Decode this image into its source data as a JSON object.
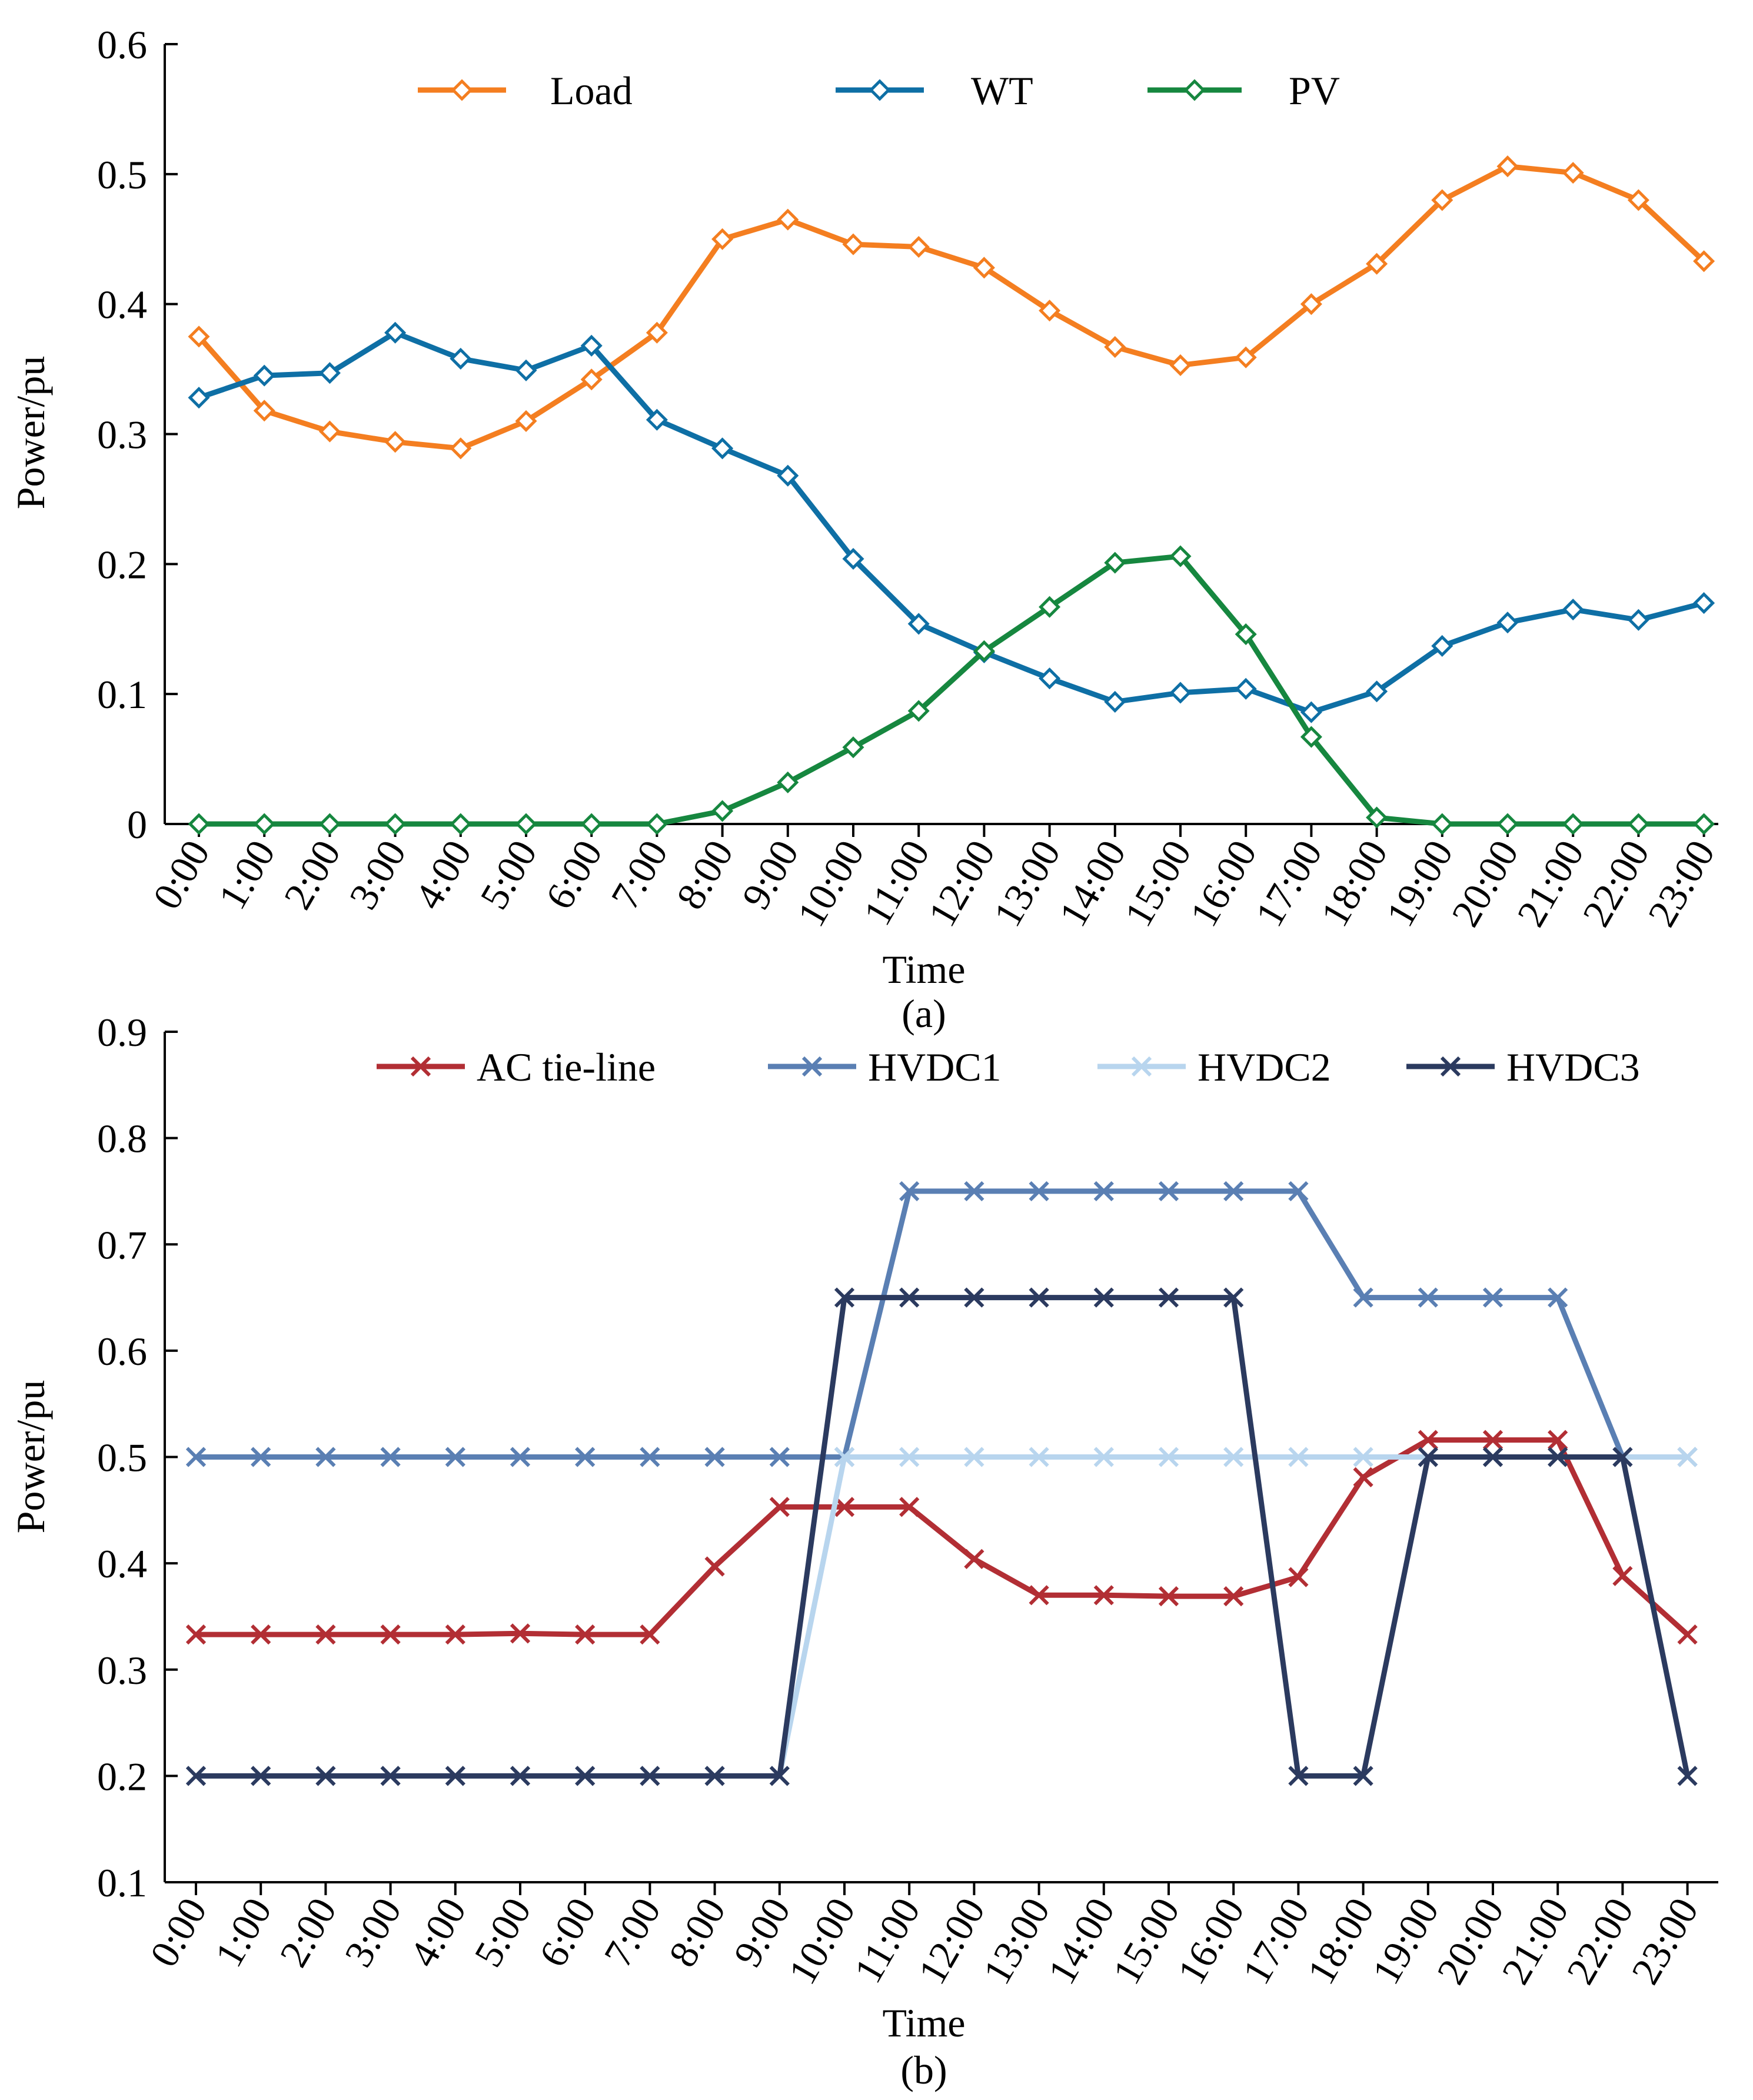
{
  "chart_data": [
    {
      "type": "line",
      "caption": "(a)",
      "title": "",
      "xlabel": "Time",
      "ylabel": "Power/pu",
      "ylim": [
        0,
        0.6
      ],
      "yticks": [
        "0",
        "0.1",
        "0.2",
        "0.3",
        "0.4",
        "0.5",
        "0.6"
      ],
      "categories": [
        "0:00",
        "1:00",
        "2:00",
        "3:00",
        "4:00",
        "5:00",
        "6:00",
        "7:00",
        "8:00",
        "9:00",
        "10:00",
        "11:00",
        "12:00",
        "13:00",
        "14:00",
        "15:00",
        "16:00",
        "17:00",
        "18:00",
        "19:00",
        "20:00",
        "21:00",
        "22:00",
        "23:00"
      ],
      "legend_position": "top",
      "series": [
        {
          "name": "Load",
          "color": "#F47E20",
          "marker": "diamond",
          "values": [
            0.375,
            0.318,
            0.302,
            0.294,
            0.289,
            0.31,
            0.342,
            0.378,
            0.45,
            0.465,
            0.446,
            0.444,
            0.428,
            0.395,
            0.367,
            0.353,
            0.359,
            0.4,
            0.431,
            0.48,
            0.506,
            0.501,
            0.48,
            0.433
          ]
        },
        {
          "name": "WT",
          "color": "#0E6FA5",
          "marker": "diamond",
          "values": [
            0.328,
            0.345,
            0.347,
            0.378,
            0.358,
            0.349,
            0.368,
            0.311,
            0.289,
            0.268,
            0.204,
            0.154,
            0.132,
            0.112,
            0.094,
            0.101,
            0.104,
            0.086,
            0.102,
            0.137,
            0.155,
            0.165,
            0.157,
            0.17
          ]
        },
        {
          "name": "PV",
          "color": "#16873F",
          "marker": "diamond",
          "values": [
            0,
            0,
            0,
            0,
            0,
            0,
            0,
            0,
            0.01,
            0.032,
            0.059,
            0.087,
            0.133,
            0.167,
            0.201,
            0.206,
            0.146,
            0.067,
            0.005,
            0,
            0,
            0,
            0,
            0
          ]
        }
      ]
    },
    {
      "type": "line",
      "caption": "(b)",
      "title": "",
      "xlabel": "Time",
      "ylabel": "Power/pu",
      "ylim": [
        0.1,
        0.9
      ],
      "yticks": [
        "0.1",
        "0.2",
        "0.3",
        "0.4",
        "0.5",
        "0.6",
        "0.7",
        "0.8",
        "0.9"
      ],
      "categories": [
        "0:00",
        "1:00",
        "2:00",
        "3:00",
        "4:00",
        "5:00",
        "6:00",
        "7:00",
        "8:00",
        "9:00",
        "10:00",
        "11:00",
        "12:00",
        "13:00",
        "14:00",
        "15:00",
        "16:00",
        "17:00",
        "18:00",
        "19:00",
        "20:00",
        "21:00",
        "22:00",
        "23:00"
      ],
      "legend_position": "top",
      "series": [
        {
          "name": "AC tie-line",
          "color": "#B22E34",
          "marker": "x",
          "values": [
            0.333,
            0.333,
            0.333,
            0.333,
            0.333,
            0.334,
            0.333,
            0.333,
            0.397,
            0.453,
            0.453,
            0.453,
            0.404,
            0.37,
            0.37,
            0.369,
            0.369,
            0.387,
            0.481,
            0.516,
            0.516,
            0.516,
            0.388,
            0.333
          ]
        },
        {
          "name": "HVDC1",
          "color": "#5A7FB3",
          "marker": "x",
          "values": [
            0.5,
            0.5,
            0.5,
            0.5,
            0.5,
            0.5,
            0.5,
            0.5,
            0.5,
            0.5,
            0.5,
            0.75,
            0.75,
            0.75,
            0.75,
            0.75,
            0.75,
            0.75,
            0.65,
            0.65,
            0.65,
            0.65,
            0.5,
            0.5
          ]
        },
        {
          "name": "HVDC2",
          "color": "#B8D5EE",
          "marker": "x",
          "values": [
            0.2,
            0.2,
            0.2,
            0.2,
            0.2,
            0.2,
            0.2,
            0.2,
            0.2,
            0.2,
            0.5,
            0.5,
            0.5,
            0.5,
            0.5,
            0.5,
            0.5,
            0.5,
            0.5,
            0.5,
            0.5,
            0.5,
            0.5,
            0.5
          ]
        },
        {
          "name": "HVDC3",
          "color": "#2B3A5F",
          "marker": "x",
          "values": [
            0.2,
            0.2,
            0.2,
            0.2,
            0.2,
            0.2,
            0.2,
            0.2,
            0.2,
            0.2,
            0.65,
            0.65,
            0.65,
            0.65,
            0.65,
            0.65,
            0.65,
            0.2,
            0.2,
            0.5,
            0.5,
            0.5,
            0.5,
            0.2
          ]
        }
      ]
    }
  ]
}
